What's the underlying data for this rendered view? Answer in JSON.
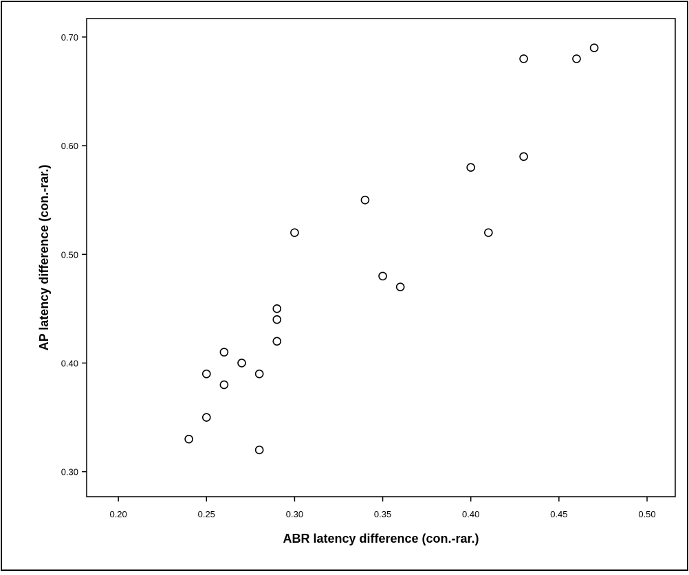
{
  "chart_data": {
    "type": "scatter",
    "title": "",
    "xlabel": "ABR latency difference (con.-rar.)",
    "ylabel": "AP latency difference (con.-rar.)",
    "xlim": [
      0.182,
      0.516
    ],
    "ylim": [
      0.277,
      0.717
    ],
    "x_ticks": [
      "0.20",
      "0.25",
      "0.30",
      "0.35",
      "0.40",
      "0.45",
      "0.50"
    ],
    "y_ticks": [
      "0.30",
      "0.40",
      "0.50",
      "0.60",
      "0.70"
    ],
    "grid": false,
    "legend": "none",
    "marker": "open-circle",
    "colors": {
      "marker_stroke": "#000000",
      "marker_fill": "#ffffff",
      "axis": "#000000",
      "background": "#ffffff"
    },
    "series": [
      {
        "points": [
          {
            "x": 0.24,
            "y": 0.33
          },
          {
            "x": 0.25,
            "y": 0.35
          },
          {
            "x": 0.25,
            "y": 0.39
          },
          {
            "x": 0.26,
            "y": 0.38
          },
          {
            "x": 0.26,
            "y": 0.41
          },
          {
            "x": 0.27,
            "y": 0.4
          },
          {
            "x": 0.28,
            "y": 0.39
          },
          {
            "x": 0.28,
            "y": 0.32
          },
          {
            "x": 0.29,
            "y": 0.42
          },
          {
            "x": 0.29,
            "y": 0.44
          },
          {
            "x": 0.29,
            "y": 0.45
          },
          {
            "x": 0.3,
            "y": 0.52
          },
          {
            "x": 0.34,
            "y": 0.55
          },
          {
            "x": 0.35,
            "y": 0.48
          },
          {
            "x": 0.36,
            "y": 0.47
          },
          {
            "x": 0.4,
            "y": 0.58
          },
          {
            "x": 0.41,
            "y": 0.52
          },
          {
            "x": 0.43,
            "y": 0.59
          },
          {
            "x": 0.43,
            "y": 0.68
          },
          {
            "x": 0.46,
            "y": 0.68
          },
          {
            "x": 0.47,
            "y": 0.69
          }
        ]
      }
    ]
  }
}
